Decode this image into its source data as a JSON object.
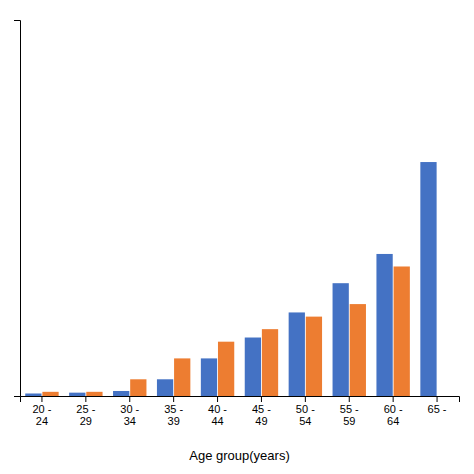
{
  "chart_data": {
    "type": "bar",
    "xlabel": "Age group(years)",
    "categories": [
      "20 -\n24",
      "25 -\n29",
      "30 -\n34",
      "35 -\n39",
      "40 -\n44",
      "45 -\n49",
      "50 -\n54",
      "55 -\n59",
      "60 -\n64",
      "65 -\n"
    ],
    "series": [
      {
        "color": "#4472C4",
        "values": [
          0.3,
          0.4,
          0.6,
          2.0,
          4.5,
          7.0,
          10.0,
          13.5,
          17.0,
          28.0
        ]
      },
      {
        "color": "#ED7D31",
        "values": [
          0.5,
          0.5,
          2.0,
          4.5,
          6.5,
          8.0,
          9.5,
          11.0,
          15.5,
          0
        ]
      }
    ],
    "ylim": [
      0,
      45
    ],
    "yticks": [],
    "tick_labels": "x"
  }
}
